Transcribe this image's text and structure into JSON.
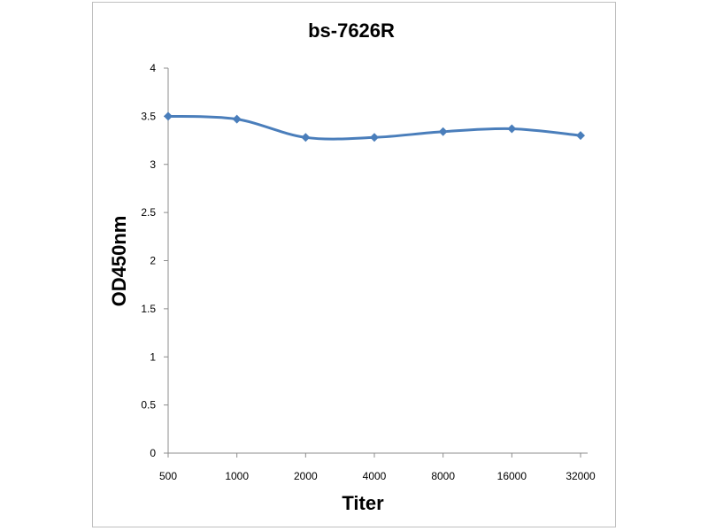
{
  "chart_data": {
    "type": "line",
    "title": "bs-7626R",
    "xlabel": "Titer",
    "ylabel": "OD450nm",
    "categories": [
      "500",
      "1000",
      "2000",
      "4000",
      "8000",
      "16000",
      "32000"
    ],
    "series": [
      {
        "values": [
          3.5,
          3.47,
          3.28,
          3.28,
          3.34,
          3.37,
          3.3
        ]
      }
    ],
    "ylim": [
      0,
      4
    ],
    "yticks": [
      "0",
      "0.5",
      "1",
      "1.5",
      "2",
      "2.5",
      "3",
      "3.5",
      "4"
    ],
    "grid": false,
    "legend": "none",
    "colors": {
      "series": "#4a7ebb",
      "axis": "#8c8c8c"
    }
  }
}
